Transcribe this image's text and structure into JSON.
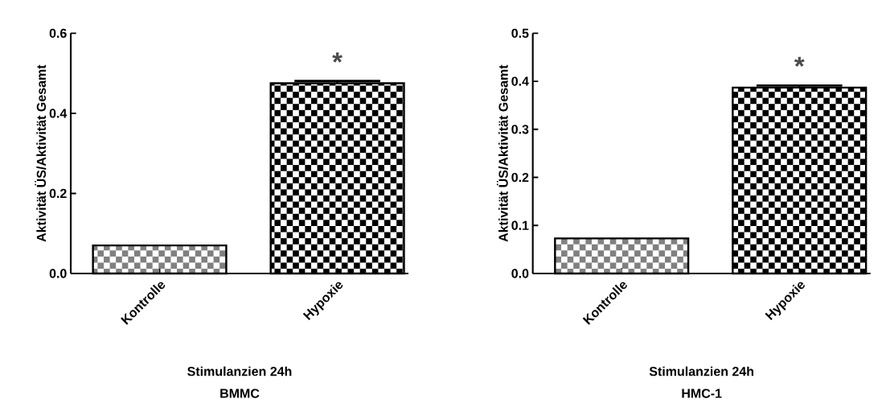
{
  "chart_data": [
    {
      "type": "bar",
      "title": "BMMC",
      "xlabel": "Stimulanzien 24h",
      "ylabel": "Aktivität ÜS/Aktivität Gesamt",
      "categories": [
        "Kontrolle",
        "Hypoxie"
      ],
      "values": [
        0.07,
        0.475
      ],
      "errors": [
        null,
        0.006
      ],
      "colors": [
        "#808080",
        "#000000"
      ],
      "ylim": [
        0,
        0.6
      ],
      "yticks": [
        {
          "value": 0,
          "label": "0.0"
        },
        0.2,
        0.4,
        0.6
      ],
      "annotations": [
        "*"
      ]
    },
    {
      "type": "bar",
      "title": "HMC-1",
      "xlabel": "Stimulanzien 24h",
      "ylabel": "Aktivität ÜS/Aktivität Gesamt",
      "categories": [
        "Kontrolle",
        "Hypoxie"
      ],
      "values": [
        0.073,
        0.387
      ],
      "errors": [
        null,
        0.004
      ],
      "colors": [
        "#808080",
        "#000000"
      ],
      "ylim": [
        0,
        0.5
      ],
      "yticks": [
        {
          "value": 0,
          "label": "0.0"
        },
        0.1,
        0.2,
        0.3,
        0.4,
        0.5
      ],
      "annotations": [
        "*"
      ]
    }
  ]
}
